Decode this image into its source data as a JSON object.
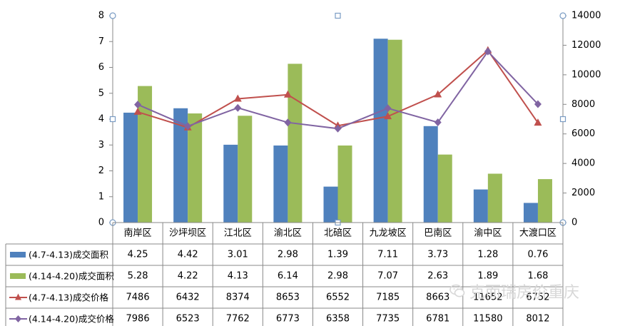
{
  "chart_data": {
    "type": "bar",
    "title": "",
    "categories": [
      "南岸区",
      "沙坪坝区",
      "江北区",
      "渝北区",
      "北碚区",
      "九龙坡区",
      "巴南区",
      "渝中区",
      "大渡口区"
    ],
    "y_left": {
      "ylim": [
        0,
        8
      ],
      "ticks": [
        "0",
        "1",
        "2",
        "3",
        "4",
        "5",
        "6",
        "7",
        "8"
      ]
    },
    "y_right": {
      "ylim": [
        0,
        14000
      ],
      "ticks": [
        "0",
        "2000",
        "4000",
        "6000",
        "8000",
        "10000",
        "12000",
        "14000"
      ]
    },
    "grid": false,
    "legend_placement": "data-table-left",
    "series": [
      {
        "name": "(4.7-4.13)成交面积",
        "type": "bar",
        "axis": "left",
        "color": "#4f81bd",
        "values": [
          4.25,
          4.42,
          3.01,
          2.98,
          1.39,
          7.11,
          3.73,
          1.28,
          0.76
        ],
        "labels": [
          "4.25",
          "4.42",
          "3.01",
          "2.98",
          "1.39",
          "7.11",
          "3.73",
          "1.28",
          "0.76"
        ]
      },
      {
        "name": "(4.14-4.20)成交面积",
        "type": "bar",
        "axis": "left",
        "color": "#9bbb59",
        "values": [
          5.28,
          4.22,
          4.13,
          6.14,
          2.98,
          7.07,
          2.63,
          1.89,
          1.68
        ],
        "labels": [
          "5.28",
          "4.22",
          "4.13",
          "6.14",
          "2.98",
          "7.07",
          "2.63",
          "1.89",
          "1.68"
        ]
      },
      {
        "name": "(4.7-4.13)成交价格",
        "type": "line",
        "axis": "right",
        "color": "#c0504d",
        "marker": "triangle",
        "values": [
          7486,
          6432,
          8374,
          8653,
          6552,
          7185,
          8663,
          11652,
          6752
        ],
        "labels": [
          "7486",
          "6432",
          "8374",
          "8653",
          "6552",
          "7185",
          "8663",
          "11652",
          "6752"
        ]
      },
      {
        "name": "(4.14-4.20)成交价格",
        "type": "line",
        "axis": "right",
        "color": "#8064a2",
        "marker": "diamond",
        "values": [
          7986,
          6523,
          7762,
          6773,
          6358,
          7735,
          6781,
          11580,
          8012
        ],
        "labels": [
          "7986",
          "6523",
          "7762",
          "6773",
          "6358",
          "7735",
          "6781",
          "11580",
          "8012"
        ]
      }
    ]
  },
  "watermark": {
    "text": "克而瑞房价重庆",
    "icon": "wechat-icon"
  }
}
